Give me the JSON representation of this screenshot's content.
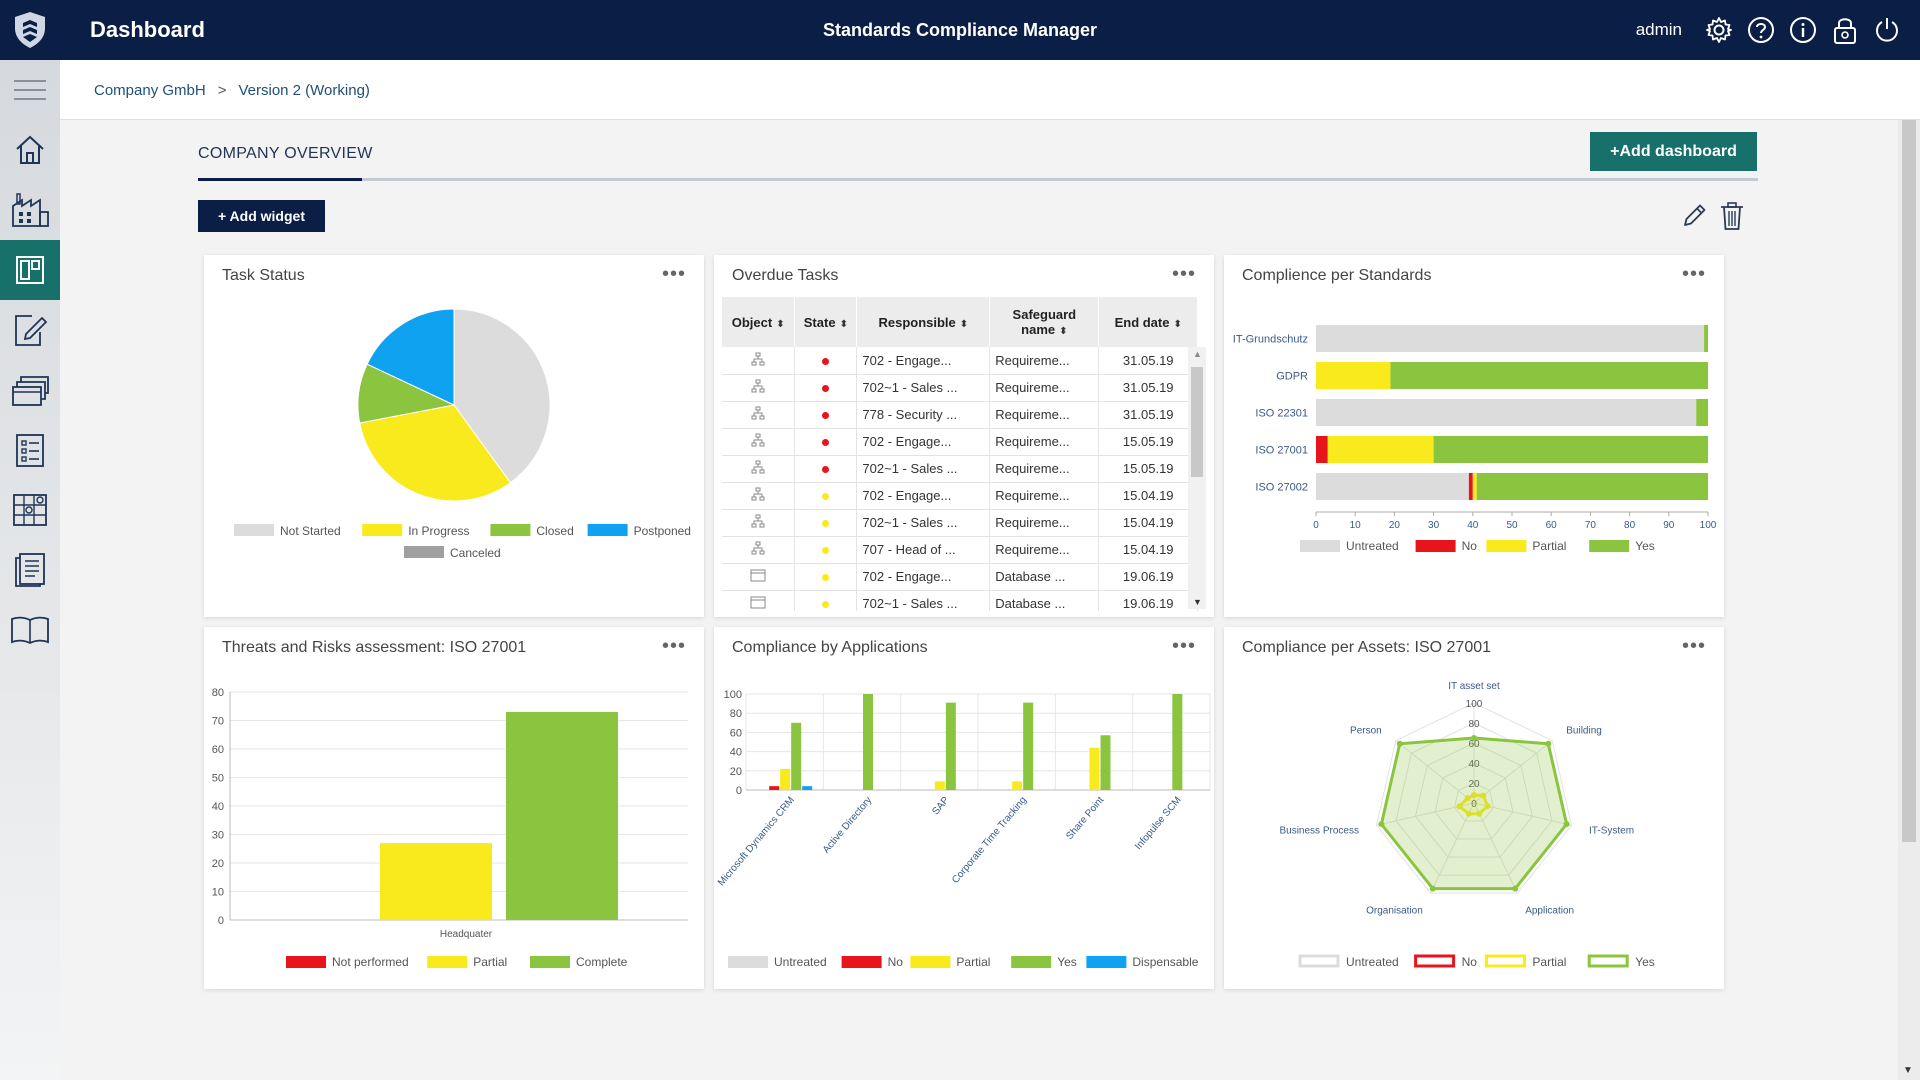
{
  "header": {
    "app_title": "Dashboard",
    "product_title": "Standards Compliance Manager",
    "user": "admin",
    "icons": [
      "gear-icon",
      "help-icon",
      "info-icon",
      "lock-icon",
      "power-icon"
    ]
  },
  "sidebar": {
    "items": [
      {
        "name": "home-icon"
      },
      {
        "name": "factory-icon"
      },
      {
        "name": "dashboard-icon",
        "active": true
      },
      {
        "name": "edit-document-icon"
      },
      {
        "name": "stack-icon"
      },
      {
        "name": "checklist-icon"
      },
      {
        "name": "grid-icon"
      },
      {
        "name": "report-icon"
      },
      {
        "name": "book-icon"
      }
    ]
  },
  "breadcrumb": {
    "items": [
      "Company GmbH",
      "Version 2 (Working)"
    ],
    "separator": ">"
  },
  "overview": {
    "title": "COMPANY OVERVIEW",
    "add_dashboard": "+Add dashboard",
    "add_widget": "+ Add widget"
  },
  "colors": {
    "navy": "#0b1e45",
    "teal": "#17706a",
    "grey": "#dcdcdc",
    "yellow": "#f9ea1e",
    "green": "#8bc43f",
    "red": "#e8141c",
    "blue": "#0ea2f0",
    "dark_grey": "#a0a0a0"
  },
  "widgets": {
    "task_status": {
      "title": "Task Status",
      "menu": "•••",
      "chart_data": {
        "type": "pie",
        "labels": [
          "Not Started",
          "In Progress",
          "Closed",
          "Postponed",
          "Canceled"
        ],
        "values": [
          40,
          32,
          10,
          18,
          0
        ],
        "colors": [
          "#dcdcdc",
          "#f9ea1e",
          "#8bc43f",
          "#0ea2f0",
          "#a0a0a0"
        ]
      }
    },
    "overdue_tasks": {
      "title": "Overdue Tasks",
      "menu": "•••",
      "columns": [
        "Object",
        "State",
        "Responsible",
        "Safeguard name",
        "End date"
      ],
      "rows": [
        {
          "object": "tree-icon",
          "state": "red",
          "responsible": "702 - Engage...",
          "safeguard": "Requireme...",
          "end": "31.05.19"
        },
        {
          "object": "tree-icon",
          "state": "red",
          "responsible": "702~1 - Sales ...",
          "safeguard": "Requireme...",
          "end": "31.05.19"
        },
        {
          "object": "tree-icon",
          "state": "red",
          "responsible": "778 - Security ...",
          "safeguard": "Requireme...",
          "end": "31.05.19"
        },
        {
          "object": "tree-icon",
          "state": "red",
          "responsible": "702 - Engage...",
          "safeguard": "Requireme...",
          "end": "15.05.19"
        },
        {
          "object": "tree-icon",
          "state": "red",
          "responsible": "702~1 - Sales ...",
          "safeguard": "Requireme...",
          "end": "15.05.19"
        },
        {
          "object": "tree-icon",
          "state": "yellow",
          "responsible": "702 - Engage...",
          "safeguard": "Requireme...",
          "end": "15.04.19"
        },
        {
          "object": "tree-icon",
          "state": "yellow",
          "responsible": "702~1 - Sales ...",
          "safeguard": "Requireme...",
          "end": "15.04.19"
        },
        {
          "object": "tree-icon",
          "state": "yellow",
          "responsible": "707 - Head of ...",
          "safeguard": "Requireme...",
          "end": "15.04.19"
        },
        {
          "object": "window-icon",
          "state": "yellow",
          "responsible": "702 - Engage...",
          "safeguard": "Database ...",
          "end": "19.06.19"
        },
        {
          "object": "window-icon",
          "state": "yellow",
          "responsible": "702~1 - Sales ...",
          "safeguard": "Database ...",
          "end": "19.06.19"
        }
      ]
    },
    "compliance_standards": {
      "title": "Complience per Standards",
      "menu": "•••",
      "chart_data": {
        "type": "bar",
        "orientation": "horizontal",
        "stacked": true,
        "categories": [
          "IT-Grundschutz",
          "GDPR",
          "ISO 22301",
          "ISO 27001",
          "ISO 27002"
        ],
        "series": [
          {
            "name": "Untreated",
            "color": "#dcdcdc",
            "values": [
              99,
              0,
              97,
              0,
              39
            ]
          },
          {
            "name": "No",
            "color": "#e8141c",
            "values": [
              0,
              0,
              0,
              3,
              1
            ]
          },
          {
            "name": "Partial",
            "color": "#f9ea1e",
            "values": [
              0,
              19,
              0,
              27,
              1
            ]
          },
          {
            "name": "Yes",
            "color": "#8bc43f",
            "values": [
              1,
              81,
              3,
              70,
              59
            ]
          }
        ],
        "xlim": [
          0,
          100
        ],
        "xticks": [
          "0",
          "10",
          "20",
          "30",
          "40",
          "50",
          "60",
          "70",
          "80",
          "90",
          "100"
        ]
      }
    },
    "threats_risks": {
      "title": "Threats and Risks assessment: ISO 27001",
      "menu": "•••",
      "chart_data": {
        "type": "bar",
        "categories": [
          "Headquater"
        ],
        "series": [
          {
            "name": "Not performed",
            "color": "#e8141c",
            "values": [
              0
            ]
          },
          {
            "name": "Partial",
            "color": "#f9ea1e",
            "values": [
              27
            ]
          },
          {
            "name": "Complete",
            "color": "#8bc43f",
            "values": [
              73
            ]
          }
        ],
        "ylim": [
          0,
          80
        ],
        "yticks": [
          "0",
          "10",
          "20",
          "30",
          "40",
          "50",
          "60",
          "70",
          "80"
        ]
      }
    },
    "compliance_apps": {
      "title": "Compliance by Applications",
      "menu": "•••",
      "chart_data": {
        "type": "bar",
        "categories": [
          "Microsoft Dynamics CRM",
          "Active Directory",
          "SAP",
          "Corporate Time Tracking",
          "Share Point",
          "Infopulse SCM"
        ],
        "series": [
          {
            "name": "Untreated",
            "color": "#dcdcdc",
            "values": [
              0,
              0,
              0,
              0,
              0,
              0
            ]
          },
          {
            "name": "No",
            "color": "#e8141c",
            "values": [
              4,
              0,
              0,
              0,
              0,
              0
            ]
          },
          {
            "name": "Partial",
            "color": "#f9ea1e",
            "values": [
              22,
              0,
              9,
              9,
              44,
              0
            ]
          },
          {
            "name": "Yes",
            "color": "#8bc43f",
            "values": [
              70,
              100,
              91,
              91,
              57,
              100
            ]
          },
          {
            "name": "Dispensable",
            "color": "#0ea2f0",
            "values": [
              4,
              0,
              0,
              0,
              0,
              0
            ]
          }
        ],
        "ylim": [
          0,
          100
        ],
        "yticks": [
          "0",
          "20",
          "40",
          "60",
          "80",
          "100"
        ]
      }
    },
    "compliance_assets": {
      "title": "Compliance per Assets: ISO 27001",
      "menu": "•••",
      "chart_data": {
        "type": "radar",
        "axes": [
          "IT asset set",
          "Building",
          "IT-System",
          "Application",
          "Organisation",
          "Business Process",
          "Person"
        ],
        "rlim": [
          0,
          100
        ],
        "rticks": [
          "20",
          "40",
          "60",
          "80",
          "100"
        ],
        "top_ticks": [
          "100",
          "80",
          "60",
          "40",
          "20",
          "0"
        ],
        "series": [
          {
            "name": "Untreated",
            "color": "#dcdcdc",
            "values": [
              0,
              0,
              0,
              0,
              0,
              0,
              0
            ]
          },
          {
            "name": "No",
            "color": "#e8141c",
            "values": [
              0,
              0,
              0,
              0,
              0,
              0,
              0
            ]
          },
          {
            "name": "Partial",
            "color": "#f9ea1e",
            "values": [
              8,
              12,
              14,
              12,
              12,
              15,
              8
            ]
          },
          {
            "name": "Yes",
            "color": "#8bc43f",
            "values": [
              65,
              95,
              95,
              95,
              95,
              95,
              95
            ]
          }
        ]
      }
    }
  }
}
